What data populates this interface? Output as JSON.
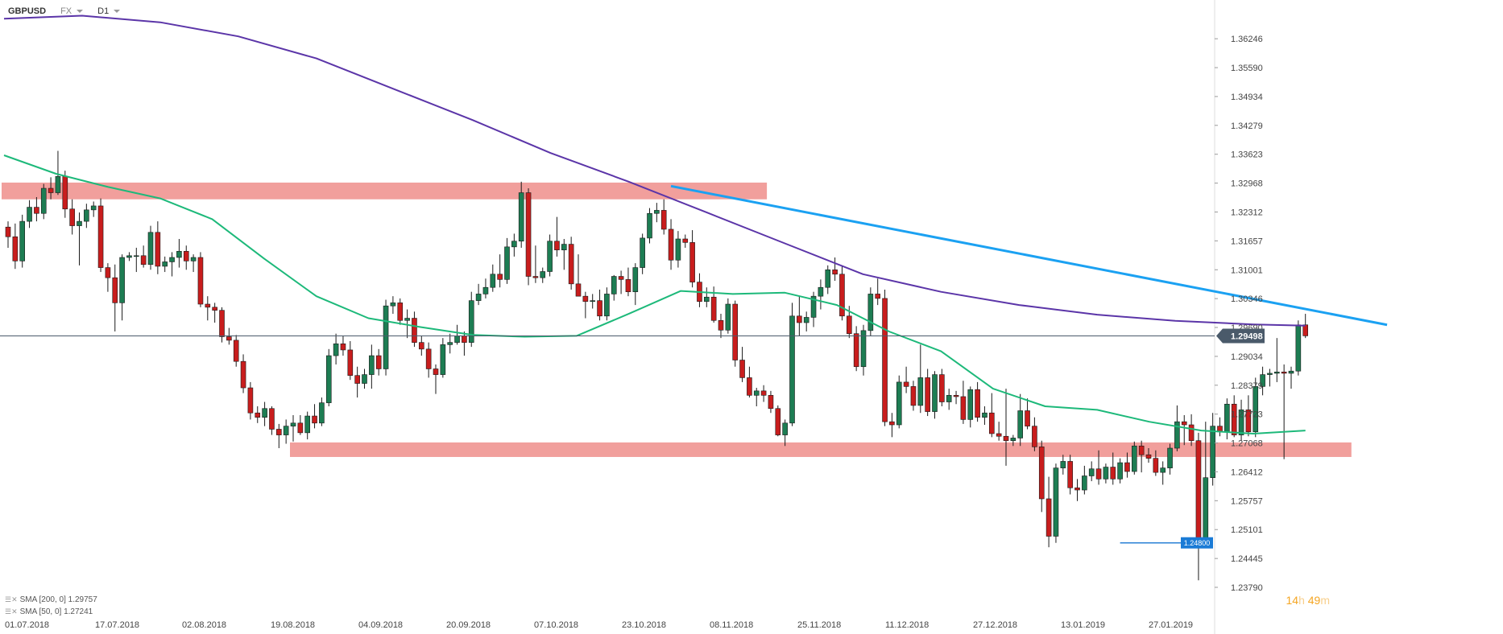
{
  "toolbar": {
    "symbol": "GBPUSD",
    "market": "FX",
    "interval": "D1"
  },
  "indicators": [
    {
      "label": "SMA [200, 0] 1.29757",
      "color": "#5b35a8"
    },
    {
      "label": "SMA [50, 0] 1.27241",
      "color": "#1db97a"
    }
  ],
  "timer": {
    "hours": "14",
    "h_label": "h",
    "minutes": "49",
    "m_label": "m"
  },
  "chart_data": {
    "type": "candlestick",
    "symbol": "GBPUSD",
    "timeframe": "D1",
    "x_labels": [
      "01.07.2018",
      "17.07.2018",
      "02.08.2018",
      "19.08.2018",
      "04.09.2018",
      "20.09.2018",
      "07.10.2018",
      "23.10.2018",
      "08.11.2018",
      "25.11.2018",
      "11.12.2018",
      "27.12.2018",
      "13.01.2019",
      "27.01.2019"
    ],
    "y_ticks": [
      "1.36246",
      "1.35590",
      "1.34934",
      "1.34279",
      "1.33623",
      "1.32968",
      "1.32312",
      "1.31657",
      "1.31001",
      "1.30346",
      "1.29690",
      "1.29034",
      "1.28379",
      "1.27723",
      "1.27068",
      "1.26412",
      "1.25757",
      "1.25101",
      "1.24445",
      "1.23790"
    ],
    "ylim": [
      1.2379,
      1.3676
    ],
    "current_price": "1.29498",
    "low_marker": "1.24800",
    "colors": {
      "up": "#1d7d53",
      "down": "#c81d1d",
      "sma200": "#5b35a8",
      "sma50": "#1db97a",
      "trendline": "#1ba1f2",
      "zone": "#ef8e8b",
      "price_tag": "#4a5a6a",
      "low_tag": "#1a7bd6"
    },
    "candles": [
      [
        1.3197,
        1.321,
        1.315,
        1.3175
      ],
      [
        1.3175,
        1.3205,
        1.3102,
        1.312
      ],
      [
        1.312,
        1.3225,
        1.3105,
        1.321
      ],
      [
        1.321,
        1.3258,
        1.3195,
        1.3242
      ],
      [
        1.3242,
        1.3265,
        1.321,
        1.3228
      ],
      [
        1.3228,
        1.3295,
        1.3215,
        1.3285
      ],
      [
        1.3285,
        1.331,
        1.326,
        1.3275
      ],
      [
        1.3275,
        1.337,
        1.327,
        1.3312
      ],
      [
        1.3312,
        1.3325,
        1.3218,
        1.3238
      ],
      [
        1.3238,
        1.326,
        1.318,
        1.32
      ],
      [
        1.32,
        1.323,
        1.311,
        1.321
      ],
      [
        1.321,
        1.325,
        1.3195,
        1.3236
      ],
      [
        1.3236,
        1.3255,
        1.322,
        1.3245
      ],
      [
        1.3245,
        1.3262,
        1.3095,
        1.3105
      ],
      [
        1.3105,
        1.3115,
        1.305,
        1.3082
      ],
      [
        1.3082,
        1.3112,
        1.296,
        1.3025
      ],
      [
        1.3025,
        1.3135,
        1.2985,
        1.3128
      ],
      [
        1.3128,
        1.314,
        1.312,
        1.3132
      ],
      [
        1.3132,
        1.315,
        1.3095,
        1.3132
      ],
      [
        1.3132,
        1.3155,
        1.3105,
        1.3112
      ],
      [
        1.3112,
        1.32,
        1.31,
        1.3185
      ],
      [
        1.3185,
        1.321,
        1.309,
        1.3108
      ],
      [
        1.3108,
        1.313,
        1.3095,
        1.3118
      ],
      [
        1.3118,
        1.314,
        1.3085,
        1.3128
      ],
      [
        1.3128,
        1.317,
        1.3105,
        1.3142
      ],
      [
        1.3142,
        1.3155,
        1.31,
        1.312
      ],
      [
        1.312,
        1.3135,
        1.3095,
        1.3128
      ],
      [
        1.3128,
        1.314,
        1.3015,
        1.3022
      ],
      [
        1.3022,
        1.304,
        1.2985,
        1.3015
      ],
      [
        1.3015,
        1.3025,
        1.298,
        1.3008
      ],
      [
        1.3008,
        1.3015,
        1.2935,
        1.2948
      ],
      [
        1.2948,
        1.2968,
        1.293,
        1.294
      ],
      [
        1.294,
        1.2952,
        1.288,
        1.2892
      ],
      [
        1.2892,
        1.2908,
        1.282,
        1.2832
      ],
      [
        1.2832,
        1.2845,
        1.276,
        1.2775
      ],
      [
        1.2775,
        1.279,
        1.2752,
        1.2765
      ],
      [
        1.2765,
        1.28,
        1.2745,
        1.2785
      ],
      [
        1.2785,
        1.279,
        1.2725,
        1.2738
      ],
      [
        1.2738,
        1.275,
        1.2695,
        1.2725
      ],
      [
        1.2725,
        1.276,
        1.2705,
        1.2745
      ],
      [
        1.2745,
        1.277,
        1.271,
        1.2752
      ],
      [
        1.2752,
        1.277,
        1.2725,
        1.273
      ],
      [
        1.273,
        1.2778,
        1.2715,
        1.2768
      ],
      [
        1.2768,
        1.2795,
        1.274,
        1.2752
      ],
      [
        1.2752,
        1.281,
        1.2745,
        1.2798
      ],
      [
        1.2798,
        1.292,
        1.279,
        1.2905
      ],
      [
        1.2905,
        1.2955,
        1.2885,
        1.2932
      ],
      [
        1.2932,
        1.295,
        1.2905,
        1.2918
      ],
      [
        1.2918,
        1.2938,
        1.285,
        1.286
      ],
      [
        1.286,
        1.288,
        1.281,
        1.2842
      ],
      [
        1.2842,
        1.2875,
        1.283,
        1.2862
      ],
      [
        1.2862,
        1.293,
        1.283,
        1.2905
      ],
      [
        1.2905,
        1.292,
        1.286,
        1.2875
      ],
      [
        1.2875,
        1.3032,
        1.286,
        1.3018
      ],
      [
        1.3018,
        1.304,
        1.3,
        1.3025
      ],
      [
        1.3025,
        1.3035,
        1.2975,
        1.2985
      ],
      [
        1.2985,
        1.301,
        1.2945,
        1.299
      ],
      [
        1.299,
        1.3005,
        1.2925,
        1.2935
      ],
      [
        1.2935,
        1.295,
        1.2905,
        1.292
      ],
      [
        1.292,
        1.2935,
        1.2855,
        1.2875
      ],
      [
        1.2875,
        1.2885,
        1.2818,
        1.2862
      ],
      [
        1.2862,
        1.2945,
        1.2855,
        1.293
      ],
      [
        1.293,
        1.2955,
        1.291,
        1.2935
      ],
      [
        1.2935,
        1.2975,
        1.293,
        1.295
      ],
      [
        1.295,
        1.296,
        1.2905,
        1.2935
      ],
      [
        1.2935,
        1.305,
        1.2925,
        1.303
      ],
      [
        1.303,
        1.3068,
        1.302,
        1.3045
      ],
      [
        1.3045,
        1.308,
        1.3035,
        1.306
      ],
      [
        1.306,
        1.3112,
        1.305,
        1.309
      ],
      [
        1.309,
        1.3135,
        1.306,
        1.3078
      ],
      [
        1.3078,
        1.3172,
        1.3068,
        1.3152
      ],
      [
        1.3152,
        1.3182,
        1.313,
        1.3165
      ],
      [
        1.3165,
        1.33,
        1.315,
        1.3275
      ],
      [
        1.3275,
        1.3285,
        1.3065,
        1.3085
      ],
      [
        1.3085,
        1.3155,
        1.307,
        1.3082
      ],
      [
        1.3082,
        1.3105,
        1.307,
        1.3096
      ],
      [
        1.3096,
        1.318,
        1.3085,
        1.3165
      ],
      [
        1.3165,
        1.322,
        1.313,
        1.3145
      ],
      [
        1.3145,
        1.317,
        1.31,
        1.3158
      ],
      [
        1.3158,
        1.3175,
        1.3055,
        1.3068
      ],
      [
        1.3068,
        1.3135,
        1.304,
        1.304
      ],
      [
        1.304,
        1.305,
        1.299,
        1.3028
      ],
      [
        1.3028,
        1.3045,
        1.3012,
        1.303
      ],
      [
        1.303,
        1.3055,
        1.2985,
        1.2995
      ],
      [
        1.2995,
        1.306,
        1.2985,
        1.3045
      ],
      [
        1.3045,
        1.3088,
        1.303,
        1.3085
      ],
      [
        1.3085,
        1.3098,
        1.3045,
        1.3078
      ],
      [
        1.3078,
        1.3105,
        1.304,
        1.305
      ],
      [
        1.305,
        1.3115,
        1.302,
        1.3105
      ],
      [
        1.3105,
        1.3182,
        1.309,
        1.3172
      ],
      [
        1.3172,
        1.324,
        1.316,
        1.3228
      ],
      [
        1.3228,
        1.3252,
        1.3208,
        1.3235
      ],
      [
        1.3235,
        1.326,
        1.318,
        1.3192
      ],
      [
        1.3192,
        1.3215,
        1.31,
        1.3122
      ],
      [
        1.3122,
        1.3188,
        1.3105,
        1.317
      ],
      [
        1.317,
        1.318,
        1.315,
        1.3162
      ],
      [
        1.3162,
        1.319,
        1.306,
        1.3072
      ],
      [
        1.3072,
        1.3092,
        1.3015,
        1.3028
      ],
      [
        1.3028,
        1.306,
        1.3015,
        1.3038
      ],
      [
        1.3038,
        1.3062,
        1.298,
        1.2985
      ],
      [
        1.2985,
        1.3,
        1.2945,
        1.2963
      ],
      [
        1.2963,
        1.3035,
        1.2955,
        1.3022
      ],
      [
        1.3022,
        1.303,
        1.288,
        1.2895
      ],
      [
        1.2895,
        1.2925,
        1.2845,
        1.2855
      ],
      [
        1.2855,
        1.288,
        1.281,
        1.2815
      ],
      [
        1.2815,
        1.2832,
        1.279,
        1.2825
      ],
      [
        1.2825,
        1.2838,
        1.28,
        1.2815
      ],
      [
        1.2815,
        1.2825,
        1.2775,
        1.2785
      ],
      [
        1.2785,
        1.2792,
        1.2722,
        1.2725
      ],
      [
        1.2725,
        1.276,
        1.27,
        1.2752
      ],
      [
        1.2752,
        1.3025,
        1.2745,
        1.2995
      ],
      [
        1.2995,
        1.304,
        1.295,
        1.298
      ],
      [
        1.298,
        1.3005,
        1.296,
        1.2992
      ],
      [
        1.2992,
        1.305,
        1.297,
        1.304
      ],
      [
        1.304,
        1.3078,
        1.301,
        1.306
      ],
      [
        1.306,
        1.311,
        1.3045,
        1.31
      ],
      [
        1.31,
        1.3128,
        1.3075,
        1.309
      ],
      [
        1.309,
        1.311,
        1.2985,
        1.2995
      ],
      [
        1.2995,
        1.3018,
        1.2945,
        1.2955
      ],
      [
        1.2955,
        1.2972,
        1.287,
        1.288
      ],
      [
        1.288,
        1.2975,
        1.286,
        1.2962
      ],
      [
        1.2962,
        1.306,
        1.295,
        1.3045
      ],
      [
        1.3045,
        1.308,
        1.302,
        1.3035
      ],
      [
        1.3035,
        1.3055,
        1.2745,
        1.2755
      ],
      [
        1.2755,
        1.2775,
        1.272,
        1.2748
      ],
      [
        1.2748,
        1.286,
        1.274,
        1.2845
      ],
      [
        1.2845,
        1.288,
        1.282,
        1.2835
      ],
      [
        1.2835,
        1.2848,
        1.278,
        1.2792
      ],
      [
        1.2792,
        1.293,
        1.2775,
        1.2855
      ],
      [
        1.2855,
        1.2875,
        1.2768,
        1.2778
      ],
      [
        1.2778,
        1.287,
        1.2762,
        1.2862
      ],
      [
        1.2862,
        1.2875,
        1.279,
        1.28
      ],
      [
        1.28,
        1.283,
        1.2782,
        1.2815
      ],
      [
        1.2815,
        1.2825,
        1.2795,
        1.2812
      ],
      [
        1.2812,
        1.2848,
        1.275,
        1.276
      ],
      [
        1.276,
        1.2835,
        1.2742,
        1.2828
      ],
      [
        1.2828,
        1.2845,
        1.2755,
        1.2765
      ],
      [
        1.2765,
        1.279,
        1.2748,
        1.2775
      ],
      [
        1.2775,
        1.282,
        1.272,
        1.2728
      ],
      [
        1.2728,
        1.2755,
        1.2712,
        1.2722
      ],
      [
        1.2722,
        1.283,
        1.2655,
        1.2712
      ],
      [
        1.2712,
        1.2725,
        1.27,
        1.2718
      ],
      [
        1.2718,
        1.2818,
        1.27,
        1.278
      ],
      [
        1.278,
        1.2808,
        1.2738,
        1.2745
      ],
      [
        1.2745,
        1.2765,
        1.2688,
        1.2698
      ],
      [
        1.2698,
        1.2712,
        1.255,
        1.258
      ],
      [
        1.258,
        1.263,
        1.247,
        1.2495
      ],
      [
        1.2495,
        1.266,
        1.248,
        1.265
      ],
      [
        1.265,
        1.268,
        1.2635,
        1.2665
      ],
      [
        1.2665,
        1.268,
        1.259,
        1.2605
      ],
      [
        1.2605,
        1.2625,
        1.2575,
        1.26
      ],
      [
        1.26,
        1.2655,
        1.259,
        1.2632
      ],
      [
        1.2632,
        1.2665,
        1.262,
        1.2648
      ],
      [
        1.2648,
        1.269,
        1.2612,
        1.2625
      ],
      [
        1.2625,
        1.266,
        1.2615,
        1.2652
      ],
      [
        1.2652,
        1.2685,
        1.2612,
        1.2625
      ],
      [
        1.2625,
        1.2672,
        1.2615,
        1.2662
      ],
      [
        1.2662,
        1.2685,
        1.2628,
        1.2642
      ],
      [
        1.2642,
        1.271,
        1.2635,
        1.27
      ],
      [
        1.27,
        1.2712,
        1.264,
        1.268
      ],
      [
        1.268,
        1.2695,
        1.2662,
        1.2672
      ],
      [
        1.2672,
        1.269,
        1.2632,
        1.264
      ],
      [
        1.264,
        1.2665,
        1.2612,
        1.265
      ],
      [
        1.265,
        1.2705,
        1.2635,
        1.2695
      ],
      [
        1.2695,
        1.2792,
        1.2688,
        1.2755
      ],
      [
        1.2755,
        1.277,
        1.2702,
        1.2748
      ],
      [
        1.2748,
        1.2772,
        1.27,
        1.2712
      ],
      [
        1.2712,
        1.273,
        1.2395,
        1.248
      ],
      [
        1.248,
        1.2755,
        1.247,
        1.2628
      ],
      [
        1.2628,
        1.2775,
        1.261,
        1.2745
      ],
      [
        1.2745,
        1.2765,
        1.2722,
        1.2732
      ],
      [
        1.2732,
        1.2808,
        1.2715,
        1.2795
      ],
      [
        1.2795,
        1.2815,
        1.272,
        1.2725
      ],
      [
        1.2725,
        1.2805,
        1.2712,
        1.2782
      ],
      [
        1.2782,
        1.2815,
        1.2722,
        1.2732
      ],
      [
        1.2732,
        1.2855,
        1.272,
        1.2835
      ],
      [
        1.2835,
        1.288,
        1.2815,
        1.2862
      ],
      [
        1.2862,
        1.2875,
        1.2835,
        1.2865
      ],
      [
        1.2865,
        1.2945,
        1.2845,
        1.2868
      ],
      [
        1.2868,
        1.2885,
        1.267,
        1.2865
      ],
      [
        1.2865,
        1.288,
        1.283,
        1.287
      ],
      [
        1.287,
        1.2985,
        1.286,
        1.2975
      ],
      [
        1.2975,
        1.3,
        1.2945,
        1.295
      ]
    ],
    "sma200": [
      [
        0,
        1.367
      ],
      [
        0.06,
        1.3677
      ],
      [
        0.12,
        1.3662
      ],
      [
        0.18,
        1.363
      ],
      [
        0.24,
        1.358
      ],
      [
        0.3,
        1.351
      ],
      [
        0.36,
        1.344
      ],
      [
        0.42,
        1.3365
      ],
      [
        0.48,
        1.33
      ],
      [
        0.54,
        1.323
      ],
      [
        0.6,
        1.316
      ],
      [
        0.66,
        1.309
      ],
      [
        0.72,
        1.305
      ],
      [
        0.78,
        1.302
      ],
      [
        0.84,
        1.2998
      ],
      [
        0.9,
        1.2984
      ],
      [
        0.96,
        1.2976
      ],
      [
        1.0,
        1.2973
      ]
    ],
    "sma50": [
      [
        0,
        1.336
      ],
      [
        0.04,
        1.3318
      ],
      [
        0.08,
        1.3288
      ],
      [
        0.12,
        1.3262
      ],
      [
        0.16,
        1.3215
      ],
      [
        0.2,
        1.3125
      ],
      [
        0.24,
        1.304
      ],
      [
        0.28,
        1.299
      ],
      [
        0.32,
        1.297
      ],
      [
        0.36,
        1.2952
      ],
      [
        0.4,
        1.2948
      ],
      [
        0.44,
        1.295
      ],
      [
        0.48,
        1.3
      ],
      [
        0.52,
        1.3052
      ],
      [
        0.56,
        1.3045
      ],
      [
        0.6,
        1.3048
      ],
      [
        0.64,
        1.302
      ],
      [
        0.68,
        1.296
      ],
      [
        0.72,
        1.2915
      ],
      [
        0.76,
        1.283
      ],
      [
        0.8,
        1.279
      ],
      [
        0.84,
        1.2782
      ],
      [
        0.88,
        1.2755
      ],
      [
        0.92,
        1.2735
      ],
      [
        0.96,
        1.2728
      ],
      [
        1.0,
        1.2735
      ]
    ],
    "trendline": {
      "start": {
        "candle": 93,
        "price": 1.329
      },
      "end": {
        "candle": 193,
        "price": 1.2975
      }
    },
    "zones": [
      {
        "from_candle": 0,
        "to_candle": 106,
        "high": 1.3298,
        "low": 1.326
      },
      {
        "from_candle": 40,
        "to_candle": 188,
        "high": 1.2708,
        "low": 1.2675
      }
    ],
    "support_line": {
      "from_candle": 156,
      "price": 1.248
    }
  }
}
